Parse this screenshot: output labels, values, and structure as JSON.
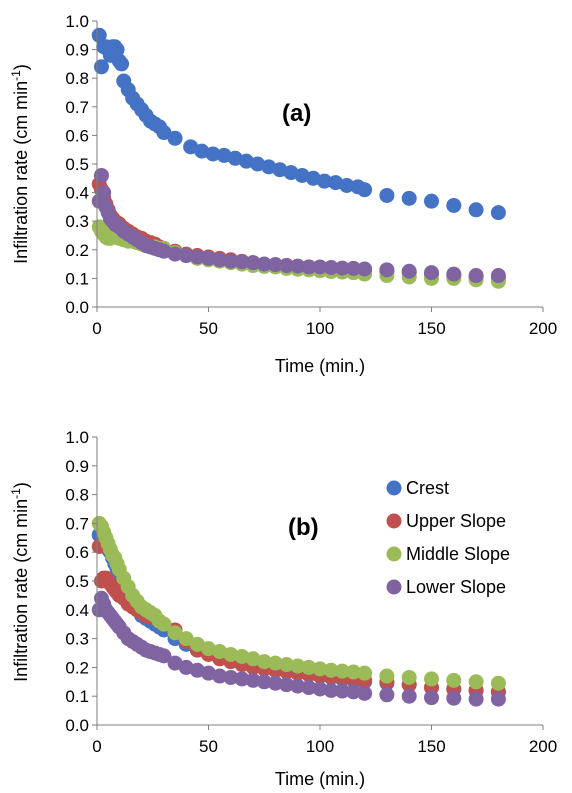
{
  "chart_data": [
    {
      "type": "scatter",
      "annotation": "(a)",
      "xlabel": "Time (min.)",
      "ylabel": "Infiltration rate (cm min-1)",
      "ylabel_main": "Infiltration rate (cm min",
      "ylabel_sup": "-1",
      "ylabel_close": ")",
      "xlim": [
        0,
        200
      ],
      "ylim": [
        0,
        1.0
      ],
      "xticks": [
        "0",
        "50",
        "100",
        "150",
        "200"
      ],
      "yticks": [
        "0.0",
        "0.1",
        "0.2",
        "0.3",
        "0.4",
        "0.5",
        "0.6",
        "0.7",
        "0.8",
        "0.9",
        "1.0"
      ],
      "grid": false,
      "legend": "none",
      "series": [
        {
          "color": "#4472C4",
          "x": [
            1,
            2,
            3,
            4,
            5,
            6,
            7,
            8,
            9,
            10,
            11,
            12,
            14,
            16,
            18,
            20,
            22,
            24,
            26,
            28,
            30,
            35,
            42,
            47,
            52,
            57,
            62,
            67,
            72,
            77,
            82,
            87,
            92,
            97,
            102,
            107,
            112,
            117,
            120,
            130,
            140,
            150,
            160,
            170,
            180
          ],
          "y": [
            0.95,
            0.84,
            0.91,
            0.91,
            0.9,
            0.88,
            0.91,
            0.91,
            0.9,
            0.86,
            0.85,
            0.79,
            0.76,
            0.73,
            0.71,
            0.69,
            0.67,
            0.65,
            0.64,
            0.63,
            0.61,
            0.59,
            0.56,
            0.545,
            0.535,
            0.53,
            0.52,
            0.51,
            0.5,
            0.49,
            0.48,
            0.47,
            0.46,
            0.45,
            0.44,
            0.435,
            0.425,
            0.42,
            0.41,
            0.39,
            0.38,
            0.37,
            0.355,
            0.34,
            0.33
          ]
        },
        {
          "color": "#C0504D",
          "x": [
            1,
            2,
            3,
            4,
            5,
            6,
            7,
            8,
            9,
            10,
            11,
            12,
            14,
            16,
            18,
            20,
            22,
            24,
            26,
            28,
            30,
            35,
            40,
            45,
            50,
            55,
            60,
            65,
            70,
            75,
            80,
            85,
            90,
            95,
            100,
            105,
            110,
            115,
            120,
            130,
            140,
            150,
            160,
            170,
            180
          ],
          "y": [
            0.43,
            0.41,
            0.38,
            0.36,
            0.34,
            0.32,
            0.31,
            0.3,
            0.295,
            0.29,
            0.28,
            0.275,
            0.265,
            0.255,
            0.245,
            0.24,
            0.23,
            0.225,
            0.22,
            0.21,
            0.205,
            0.195,
            0.185,
            0.18,
            0.175,
            0.17,
            0.165,
            0.16,
            0.155,
            0.15,
            0.148,
            0.145,
            0.142,
            0.14,
            0.138,
            0.135,
            0.133,
            0.13,
            0.13,
            0.125,
            0.12,
            0.115,
            0.11,
            0.105,
            0.1
          ]
        },
        {
          "color": "#9BBB59",
          "x": [
            1,
            2,
            3,
            4,
            5,
            6,
            7,
            8,
            9,
            10,
            12,
            14,
            16,
            18,
            20,
            22,
            24,
            26,
            28,
            30,
            35,
            40,
            45,
            50,
            55,
            60,
            65,
            70,
            75,
            80,
            85,
            90,
            95,
            100,
            105,
            110,
            115,
            120,
            130,
            140,
            150,
            160,
            170,
            180
          ],
          "y": [
            0.28,
            0.265,
            0.255,
            0.245,
            0.24,
            0.24,
            0.245,
            0.25,
            0.245,
            0.24,
            0.235,
            0.23,
            0.23,
            0.225,
            0.22,
            0.215,
            0.21,
            0.21,
            0.205,
            0.205,
            0.19,
            0.18,
            0.17,
            0.165,
            0.16,
            0.155,
            0.15,
            0.145,
            0.142,
            0.14,
            0.135,
            0.132,
            0.13,
            0.127,
            0.124,
            0.122,
            0.12,
            0.115,
            0.11,
            0.105,
            0.1,
            0.1,
            0.095,
            0.09
          ]
        },
        {
          "color": "#8064A2",
          "x": [
            1,
            2,
            3,
            4,
            5,
            6,
            7,
            8,
            9,
            10,
            12,
            14,
            16,
            18,
            20,
            22,
            24,
            26,
            28,
            30,
            35,
            40,
            45,
            50,
            55,
            60,
            65,
            70,
            75,
            80,
            85,
            90,
            95,
            100,
            105,
            110,
            115,
            120,
            130,
            140,
            150,
            160,
            170,
            180
          ],
          "y": [
            0.37,
            0.46,
            0.4,
            0.35,
            0.33,
            0.31,
            0.3,
            0.29,
            0.285,
            0.28,
            0.265,
            0.255,
            0.245,
            0.235,
            0.225,
            0.215,
            0.21,
            0.205,
            0.2,
            0.195,
            0.185,
            0.18,
            0.175,
            0.17,
            0.165,
            0.16,
            0.158,
            0.155,
            0.15,
            0.148,
            0.145,
            0.143,
            0.14,
            0.14,
            0.138,
            0.136,
            0.135,
            0.133,
            0.13,
            0.125,
            0.12,
            0.115,
            0.11,
            0.11
          ]
        }
      ]
    },
    {
      "type": "scatter",
      "annotation": "(b)",
      "xlabel": "Time (min.)",
      "ylabel": "Infiltration rate (cm min-1)",
      "ylabel_main": "Infiltration rate (cm min",
      "ylabel_sup": "-1",
      "ylabel_close": ")",
      "xlim": [
        0,
        200
      ],
      "ylim": [
        0,
        1.0
      ],
      "xticks": [
        "0",
        "50",
        "100",
        "150",
        "200"
      ],
      "yticks": [
        "0.0",
        "0.1",
        "0.2",
        "0.3",
        "0.4",
        "0.5",
        "0.6",
        "0.7",
        "0.8",
        "0.9",
        "1.0"
      ],
      "grid": false,
      "legend": "right",
      "series": [
        {
          "name": "Crest",
          "color": "#4472C4",
          "x": [
            1,
            2,
            3,
            4,
            5,
            6,
            7,
            8,
            9,
            10,
            12,
            14,
            16,
            18,
            20,
            22,
            24,
            26,
            28,
            30,
            35,
            40,
            45,
            50,
            55,
            60,
            65,
            70,
            75,
            80,
            85,
            90,
            95,
            100,
            105,
            110,
            115,
            120,
            130,
            140,
            150,
            160,
            170,
            180
          ],
          "y": [
            0.66,
            0.65,
            0.63,
            0.62,
            0.61,
            0.6,
            0.58,
            0.56,
            0.54,
            0.52,
            0.48,
            0.45,
            0.42,
            0.4,
            0.38,
            0.37,
            0.36,
            0.35,
            0.34,
            0.33,
            0.3,
            0.28,
            0.26,
            0.25,
            0.235,
            0.225,
            0.215,
            0.205,
            0.195,
            0.19,
            0.185,
            0.18,
            0.175,
            0.17,
            0.165,
            0.16,
            0.155,
            0.15,
            0.145,
            0.14,
            0.13,
            0.125,
            0.12,
            0.115
          ]
        },
        {
          "name": "Upper Slope",
          "color": "#C0504D",
          "x": [
            1,
            2,
            3,
            4,
            5,
            6,
            7,
            8,
            9,
            10,
            12,
            14,
            16,
            18,
            20,
            22,
            24,
            26,
            28,
            30,
            35,
            40,
            45,
            50,
            55,
            60,
            65,
            70,
            75,
            80,
            85,
            90,
            95,
            100,
            105,
            110,
            115,
            120,
            130,
            140,
            150,
            160,
            170,
            180
          ],
          "y": [
            0.62,
            0.5,
            0.51,
            0.51,
            0.5,
            0.49,
            0.48,
            0.47,
            0.46,
            0.45,
            0.44,
            0.42,
            0.41,
            0.4,
            0.39,
            0.38,
            0.375,
            0.37,
            0.36,
            0.35,
            0.33,
            0.29,
            0.26,
            0.245,
            0.23,
            0.22,
            0.21,
            0.2,
            0.195,
            0.19,
            0.185,
            0.18,
            0.175,
            0.17,
            0.168,
            0.165,
            0.16,
            0.155,
            0.15,
            0.14,
            0.13,
            0.125,
            0.12,
            0.115
          ]
        },
        {
          "name": "Middle Slope",
          "color": "#9BBB59",
          "x": [
            1,
            2,
            3,
            4,
            5,
            6,
            7,
            8,
            9,
            10,
            12,
            14,
            16,
            18,
            20,
            22,
            24,
            26,
            28,
            30,
            35,
            40,
            45,
            50,
            55,
            60,
            65,
            70,
            75,
            80,
            85,
            90,
            95,
            100,
            105,
            110,
            115,
            120,
            130,
            140,
            150,
            160,
            170,
            180
          ],
          "y": [
            0.7,
            0.69,
            0.67,
            0.65,
            0.63,
            0.61,
            0.59,
            0.58,
            0.56,
            0.54,
            0.51,
            0.48,
            0.45,
            0.43,
            0.41,
            0.4,
            0.39,
            0.38,
            0.36,
            0.35,
            0.32,
            0.3,
            0.28,
            0.265,
            0.255,
            0.245,
            0.238,
            0.23,
            0.22,
            0.215,
            0.21,
            0.205,
            0.2,
            0.195,
            0.19,
            0.187,
            0.184,
            0.18,
            0.17,
            0.165,
            0.16,
            0.155,
            0.15,
            0.145
          ]
        },
        {
          "name": "Lower Slope",
          "color": "#8064A2",
          "x": [
            1,
            2,
            3,
            4,
            5,
            6,
            7,
            8,
            9,
            10,
            12,
            14,
            16,
            18,
            20,
            22,
            24,
            26,
            28,
            30,
            35,
            40,
            45,
            50,
            55,
            60,
            65,
            70,
            75,
            80,
            85,
            90,
            95,
            100,
            105,
            110,
            115,
            120,
            130,
            140,
            150,
            160,
            170,
            180
          ],
          "y": [
            0.4,
            0.44,
            0.42,
            0.4,
            0.39,
            0.38,
            0.37,
            0.36,
            0.35,
            0.34,
            0.32,
            0.3,
            0.29,
            0.28,
            0.27,
            0.26,
            0.255,
            0.25,
            0.245,
            0.24,
            0.215,
            0.2,
            0.19,
            0.18,
            0.17,
            0.165,
            0.16,
            0.155,
            0.15,
            0.145,
            0.14,
            0.135,
            0.13,
            0.125,
            0.12,
            0.118,
            0.115,
            0.11,
            0.105,
            0.1,
            0.095,
            0.093,
            0.09,
            0.09
          ]
        }
      ]
    }
  ]
}
